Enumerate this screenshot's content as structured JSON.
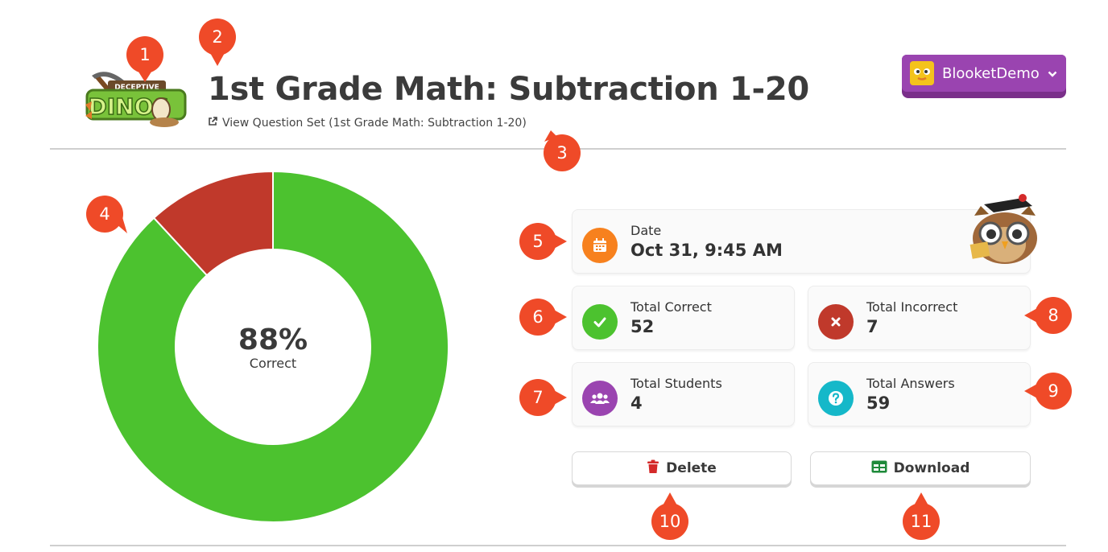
{
  "header": {
    "logo_text_top": "DECEPTIVE",
    "logo_text_main": "DINOS",
    "title": "1st Grade Math: Subtraction 1-20",
    "question_set_link": "View Question Set (1st Grade Math: Subtraction 1-20)",
    "user_menu": {
      "name": "BlooketDemo"
    }
  },
  "chart_data": {
    "type": "pie",
    "categories": [
      "Correct",
      "Incorrect"
    ],
    "values": [
      52,
      7
    ],
    "colors": [
      "#4cc22f",
      "#c0392b"
    ],
    "center_value": "88%",
    "center_label": "Correct"
  },
  "stats": {
    "date": {
      "label": "Date",
      "value": "Oct 31, 9:45 AM"
    },
    "correct": {
      "label": "Total Correct",
      "value": "52"
    },
    "incorrect": {
      "label": "Total Incorrect",
      "value": "7"
    },
    "students": {
      "label": "Total Students",
      "value": "4"
    },
    "answers": {
      "label": "Total Answers",
      "value": "59"
    }
  },
  "actions": {
    "delete_label": "Delete",
    "download_label": "Download"
  },
  "markers": [
    "1",
    "2",
    "3",
    "4",
    "5",
    "6",
    "7",
    "8",
    "9",
    "10",
    "11"
  ],
  "colors": {
    "accent_purple": "#9a44b0",
    "date_orange": "#f7811e",
    "correct_green": "#4cc22f",
    "incorrect_red": "#c0392b",
    "students_purple": "#9a44b0",
    "answers_cyan": "#15b8c9",
    "marker_red": "#ef4a28"
  }
}
